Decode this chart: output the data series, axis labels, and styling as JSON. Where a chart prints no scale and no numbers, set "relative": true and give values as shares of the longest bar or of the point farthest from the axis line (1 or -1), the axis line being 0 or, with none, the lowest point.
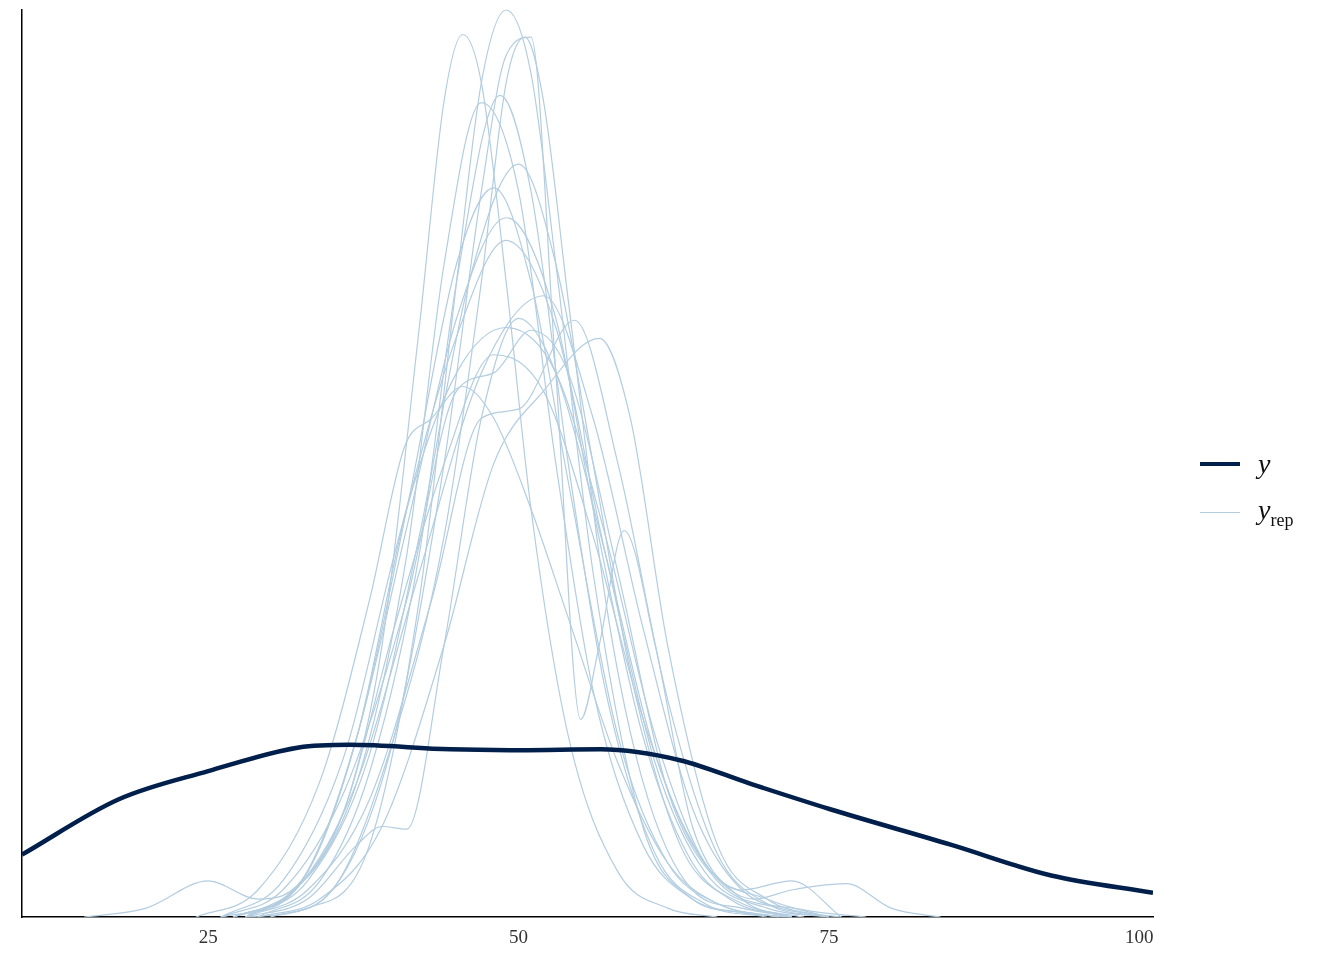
{
  "chart_data": {
    "type": "line",
    "relative": true,
    "xlim": [
      10,
      101.1
    ],
    "xticks": [
      25,
      50,
      75,
      100
    ],
    "grid": false,
    "legend": "right",
    "marker": "none",
    "line_style": "solid",
    "series": [
      {
        "name": "y",
        "color": "#011f4b",
        "x": [
          10,
          17.8,
          25,
          32.3,
          36.4,
          44.5,
          50.1,
          56.6,
          63,
          68.7,
          75.1,
          84.8,
          92.9,
          101.1
        ],
        "values": [
          0.069,
          0.13,
          0.161,
          0.187,
          0.19,
          0.185,
          0.184,
          0.185,
          0.173,
          0.147,
          0.119,
          0.08,
          0.046,
          0.027
        ]
      },
      {
        "name": "y$_{rep}$",
        "color": "#b3cde0",
        "x": [
          28,
          33,
          38,
          42,
          45,
          47,
          49,
          51,
          53,
          56,
          60,
          64,
          68,
          72
        ],
        "values": [
          0,
          0.01,
          0.08,
          0.35,
          0.7,
          0.92,
          1.0,
          0.93,
          0.72,
          0.38,
          0.1,
          0.02,
          0.005,
          0
        ]
      },
      {
        "color": "#b3cde0",
        "x": [
          26,
          31,
          36,
          39,
          42,
          44,
          45.5,
          47,
          49,
          51,
          54,
          58,
          62,
          66
        ],
        "values": [
          0,
          0.02,
          0.12,
          0.3,
          0.65,
          0.9,
          0.973,
          0.92,
          0.7,
          0.45,
          0.2,
          0.05,
          0.01,
          0
        ]
      },
      {
        "color": "#b3cde0",
        "x": [
          30,
          35,
          40,
          44,
          47,
          49,
          50.5,
          52,
          54,
          57,
          60,
          64,
          68,
          72
        ],
        "values": [
          0,
          0.03,
          0.2,
          0.42,
          0.7,
          0.92,
          0.97,
          0.9,
          0.68,
          0.35,
          0.15,
          0.03,
          0.01,
          0
        ]
      },
      {
        "color": "#b3cde0",
        "x": [
          27,
          32,
          37,
          41,
          44,
          47,
          50,
          53,
          56,
          60,
          64,
          68,
          72
        ],
        "values": [
          0,
          0.03,
          0.15,
          0.4,
          0.72,
          0.898,
          0.8,
          0.5,
          0.25,
          0.08,
          0.02,
          0.005,
          0
        ]
      },
      {
        "color": "#b3cde0",
        "x": [
          29,
          34,
          38,
          42,
          45,
          48.5,
          51,
          54,
          57,
          61,
          65,
          70
        ],
        "values": [
          0,
          0.04,
          0.16,
          0.4,
          0.7,
          0.906,
          0.8,
          0.5,
          0.25,
          0.07,
          0.015,
          0
        ]
      },
      {
        "color": "#b3cde0",
        "x": [
          28,
          33,
          38,
          42,
          46,
          50,
          53,
          56,
          59,
          63,
          67,
          72
        ],
        "values": [
          0,
          0.04,
          0.18,
          0.42,
          0.7,
          0.83,
          0.72,
          0.5,
          0.27,
          0.08,
          0.02,
          0
        ]
      },
      {
        "color": "#b3cde0",
        "x": [
          27,
          32,
          37,
          41,
          45,
          48,
          51,
          54,
          58,
          62,
          66,
          71
        ],
        "values": [
          0,
          0.03,
          0.2,
          0.45,
          0.72,
          0.804,
          0.7,
          0.48,
          0.2,
          0.06,
          0.015,
          0
        ]
      },
      {
        "color": "#b3cde0",
        "x": [
          28,
          33,
          37,
          41,
          45,
          49,
          53,
          56,
          60,
          64,
          68,
          73
        ],
        "values": [
          0,
          0.05,
          0.2,
          0.43,
          0.66,
          0.771,
          0.66,
          0.45,
          0.2,
          0.06,
          0.015,
          0
        ]
      },
      {
        "color": "#b3cde0",
        "x": [
          26,
          31,
          36,
          40,
          45,
          49,
          53,
          57,
          61,
          65,
          70,
          75
        ],
        "values": [
          0,
          0.04,
          0.18,
          0.4,
          0.64,
          0.746,
          0.65,
          0.4,
          0.17,
          0.05,
          0.01,
          0
        ]
      },
      {
        "color": "#b3cde0",
        "x": [
          27,
          32,
          37,
          42,
          47,
          52,
          56,
          60,
          64,
          68,
          73,
          78
        ],
        "values": [
          0,
          0.03,
          0.15,
          0.38,
          0.6,
          0.685,
          0.55,
          0.32,
          0.12,
          0.03,
          0.008,
          0
        ]
      },
      {
        "color": "#b3cde0",
        "x": [
          26,
          31,
          36,
          41,
          45,
          48,
          51,
          54,
          58,
          62,
          66,
          71,
          76
        ],
        "values": [
          0,
          0.03,
          0.14,
          0.35,
          0.58,
          0.6,
          0.647,
          0.6,
          0.38,
          0.14,
          0.04,
          0.01,
          0
        ]
      },
      {
        "color": "#b3cde0",
        "x": [
          28,
          33,
          38,
          43,
          47,
          50,
          54.5,
          58,
          62,
          66,
          70,
          75
        ],
        "values": [
          0,
          0.03,
          0.13,
          0.35,
          0.55,
          0.56,
          0.658,
          0.5,
          0.24,
          0.07,
          0.015,
          0
        ]
      },
      {
        "color": "#b3cde0",
        "x": [
          29,
          34,
          39,
          44,
          48,
          52,
          56.5,
          59,
          62,
          66,
          70,
          75
        ],
        "values": [
          0,
          0.02,
          0.1,
          0.3,
          0.5,
          0.58,
          0.638,
          0.55,
          0.3,
          0.08,
          0.02,
          0
        ]
      },
      {
        "color": "#b3cde0",
        "x": [
          24,
          29,
          34,
          38,
          40.8,
          43,
          45.5,
          48,
          51,
          54,
          58,
          62,
          66,
          71
        ],
        "values": [
          0,
          0.03,
          0.15,
          0.35,
          0.518,
          0.55,
          0.585,
          0.55,
          0.45,
          0.33,
          0.17,
          0.06,
          0.015,
          0
        ]
      },
      {
        "color": "#b3cde0",
        "x": [
          15,
          20,
          25,
          29,
          33,
          37,
          41,
          45,
          49,
          53,
          57,
          61,
          65,
          70,
          75
        ],
        "values": [
          0,
          0.01,
          0.04,
          0.02,
          0.05,
          0.2,
          0.45,
          0.6,
          0.65,
          0.6,
          0.42,
          0.2,
          0.06,
          0.02,
          0
        ]
      },
      {
        "color": "#b3cde0",
        "x": [
          30,
          35,
          40,
          44,
          47,
          49,
          51,
          53,
          55,
          56.5,
          58.5,
          61,
          64,
          68,
          72
        ],
        "values": [
          0,
          0.03,
          0.2,
          0.5,
          0.8,
          0.95,
          0.97,
          0.6,
          0.218,
          0.3,
          0.426,
          0.3,
          0.1,
          0.02,
          0
        ]
      },
      {
        "color": "#b3cde0",
        "x": [
          28,
          33,
          37,
          39,
          41,
          44,
          47,
          50,
          53,
          57,
          61,
          65,
          69,
          72,
          76.4,
          80,
          84
        ],
        "values": [
          0,
          0.02,
          0.08,
          0.1,
          0.097,
          0.3,
          0.55,
          0.66,
          0.6,
          0.4,
          0.18,
          0.06,
          0.02,
          0.03,
          0.037,
          0.01,
          0
        ]
      },
      {
        "color": "#b3cde0",
        "x": [
          27,
          32,
          36,
          40,
          44,
          48,
          52,
          56,
          60,
          64,
          68,
          72,
          76
        ],
        "values": [
          0,
          0.03,
          0.12,
          0.32,
          0.5,
          0.62,
          0.58,
          0.42,
          0.22,
          0.08,
          0.03,
          0.04,
          0
        ]
      }
    ]
  }
}
